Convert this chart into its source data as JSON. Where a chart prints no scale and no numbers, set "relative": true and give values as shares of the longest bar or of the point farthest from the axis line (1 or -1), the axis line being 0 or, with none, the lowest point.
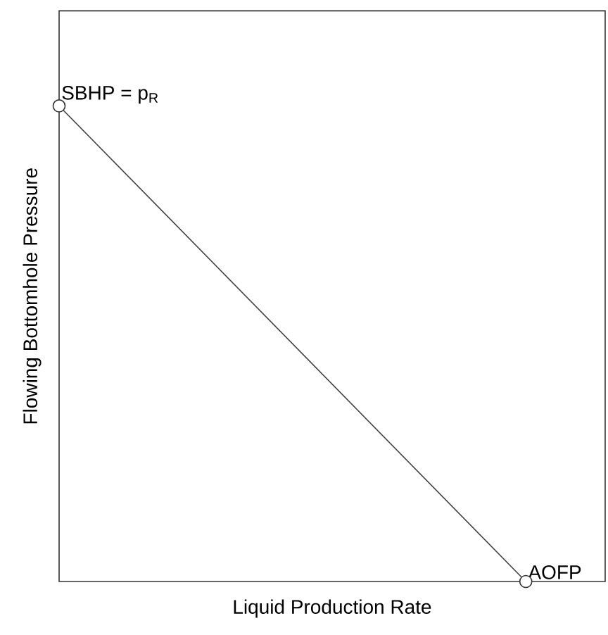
{
  "chart_data": {
    "type": "line",
    "relative": true,
    "xlabel": "Liquid Production Rate",
    "ylabel": "Flowing Bottomhole Pressure",
    "categories": [
      null,
      null
    ],
    "series": [
      {
        "color": "#404040",
        "values": [
          1,
          0
        ]
      }
    ],
    "annotations": [
      "SBHP = p$_{R}$",
      "AOFP"
    ],
    "marker": "circle",
    "line_style": "solid"
  }
}
